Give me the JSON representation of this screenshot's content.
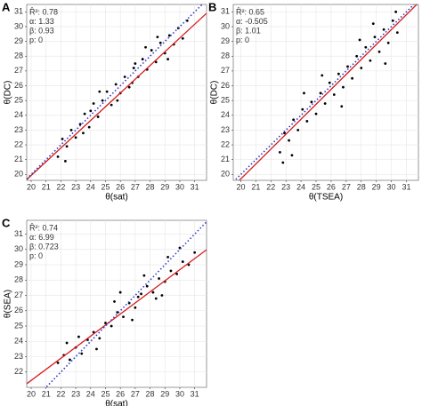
{
  "chart_data": [
    {
      "type": "scatter",
      "panel_label": "A",
      "x_label": "θ(sat)",
      "y_label": "θ(DC)",
      "stats": {
        "values": [
          0.78,
          1.33,
          0.93,
          0
        ],
        "value_labels": [
          "R̂²: 0.78",
          "α: 1.33",
          "β: 0.93",
          "p: 0"
        ]
      },
      "x": [
        21.8,
        22.1,
        22.4,
        22.7,
        23.0,
        23.3,
        23.6,
        23.9,
        24.2,
        24.5,
        24.8,
        25.1,
        25.4,
        25.7,
        26.0,
        26.3,
        26.6,
        26.9,
        27.2,
        27.5,
        27.8,
        28.1,
        28.4,
        28.7,
        29.0,
        29.3,
        29.6,
        29.9,
        30.2,
        30.5,
        22.3,
        23.5,
        24.6,
        25.8,
        26.8,
        27.7,
        28.5,
        29.2,
        24.0,
        27.0
      ],
      "y": [
        21.2,
        22.4,
        21.9,
        23.0,
        22.5,
        23.4,
        24.1,
        23.2,
        24.8,
        23.9,
        25.0,
        25.6,
        24.7,
        26.1,
        25.5,
        26.6,
        25.9,
        27.2,
        26.6,
        27.8,
        27.1,
        28.4,
        27.6,
        28.9,
        28.2,
        29.4,
        28.8,
        29.9,
        29.2,
        30.4,
        20.9,
        22.8,
        25.6,
        25.0,
        26.2,
        28.6,
        29.3,
        27.8,
        24.3,
        27.5
      ],
      "color": "#000000",
      "fit_color": "#d7191c",
      "identity_color": "#2b3cc4",
      "grid": true,
      "xlim": [
        19.7,
        31.8
      ],
      "ylim": [
        19.6,
        31.5
      ],
      "xticks": [
        20,
        21,
        22,
        23,
        24,
        25,
        26,
        27,
        28,
        29,
        30,
        31
      ],
      "yticks": [
        20,
        21,
        22,
        23,
        24,
        25,
        26,
        27,
        28,
        29,
        30,
        31
      ]
    },
    {
      "type": "scatter",
      "panel_label": "B",
      "x_label": "θ(TSEA)",
      "y_label": "θ(DC)",
      "stats": {
        "values": [
          0.65,
          -0.505,
          1.01,
          0
        ],
        "value_labels": [
          "R̂²: 0.65",
          "α: -0.505",
          "β: 1.01",
          "p: 0"
        ]
      },
      "x": [
        22.6,
        22.9,
        23.2,
        23.5,
        23.8,
        24.1,
        24.4,
        24.7,
        25.0,
        25.3,
        25.6,
        25.9,
        26.2,
        26.5,
        26.8,
        27.1,
        27.4,
        27.7,
        28.0,
        28.3,
        28.6,
        28.9,
        29.2,
        29.5,
        29.8,
        30.1,
        30.4,
        22.8,
        23.4,
        24.2,
        25.4,
        26.7,
        27.9,
        28.8,
        29.6,
        30.3
      ],
      "y": [
        21.5,
        22.8,
        22.3,
        23.7,
        23.0,
        24.4,
        23.6,
        24.9,
        24.1,
        25.5,
        24.8,
        26.2,
        25.4,
        26.8,
        25.9,
        27.3,
        26.5,
        28.0,
        27.2,
        28.6,
        27.7,
        29.3,
        28.3,
        29.8,
        28.9,
        30.4,
        29.6,
        20.8,
        21.3,
        25.5,
        26.7,
        24.6,
        29.1,
        30.2,
        27.5,
        31.0
      ],
      "color": "#000000",
      "fit_color": "#d7191c",
      "identity_color": "#2b3cc4",
      "grid": true,
      "xlim": [
        19.5,
        31.8
      ],
      "ylim": [
        19.6,
        31.5
      ],
      "xticks": [
        20,
        21,
        22,
        23,
        24,
        25,
        26,
        27,
        28,
        29,
        30,
        31
      ],
      "yticks": [
        20,
        21,
        22,
        23,
        24,
        25,
        26,
        27,
        28,
        29,
        30,
        31
      ]
    },
    {
      "type": "scatter",
      "panel_label": "C",
      "x_label": "θ(sat)",
      "y_label": "θ(SEA)",
      "stats": {
        "values": [
          0.74,
          6.99,
          0.723,
          0
        ],
        "value_labels": [
          "R̂²: 0.74",
          "α: 6.99",
          "β: 0.723",
          "p: 0"
        ]
      },
      "x": [
        21.8,
        22.2,
        22.6,
        23.0,
        23.4,
        23.8,
        24.2,
        24.6,
        25.0,
        25.4,
        25.8,
        26.2,
        26.6,
        27.0,
        27.4,
        27.8,
        28.2,
        28.6,
        29.0,
        29.4,
        29.8,
        30.2,
        30.6,
        31.0,
        23.2,
        24.4,
        25.6,
        26.8,
        27.6,
        28.4,
        29.2,
        22.4,
        26.0,
        27.2,
        28.8,
        30.0
      ],
      "y": [
        22.6,
        23.1,
        22.8,
        23.6,
        23.2,
        24.1,
        24.6,
        24.2,
        25.2,
        25.0,
        25.9,
        25.6,
        26.5,
        26.2,
        27.1,
        27.6,
        27.2,
        28.1,
        27.9,
        28.6,
        28.4,
        29.2,
        29.0,
        29.8,
        24.3,
        23.5,
        26.6,
        25.4,
        28.3,
        26.8,
        29.5,
        23.9,
        27.2,
        26.9,
        27.0,
        30.1
      ],
      "color": "#000000",
      "fit_color": "#d7191c",
      "identity_color": "#2b3cc4",
      "grid": true,
      "xlim": [
        19.7,
        31.8
      ],
      "ylim": [
        21.0,
        31.9
      ],
      "xticks": [
        20,
        21,
        22,
        23,
        24,
        25,
        26,
        27,
        28,
        29,
        30,
        31
      ],
      "yticks": [
        22,
        23,
        24,
        25,
        26,
        27,
        28,
        29,
        30,
        31
      ]
    }
  ]
}
